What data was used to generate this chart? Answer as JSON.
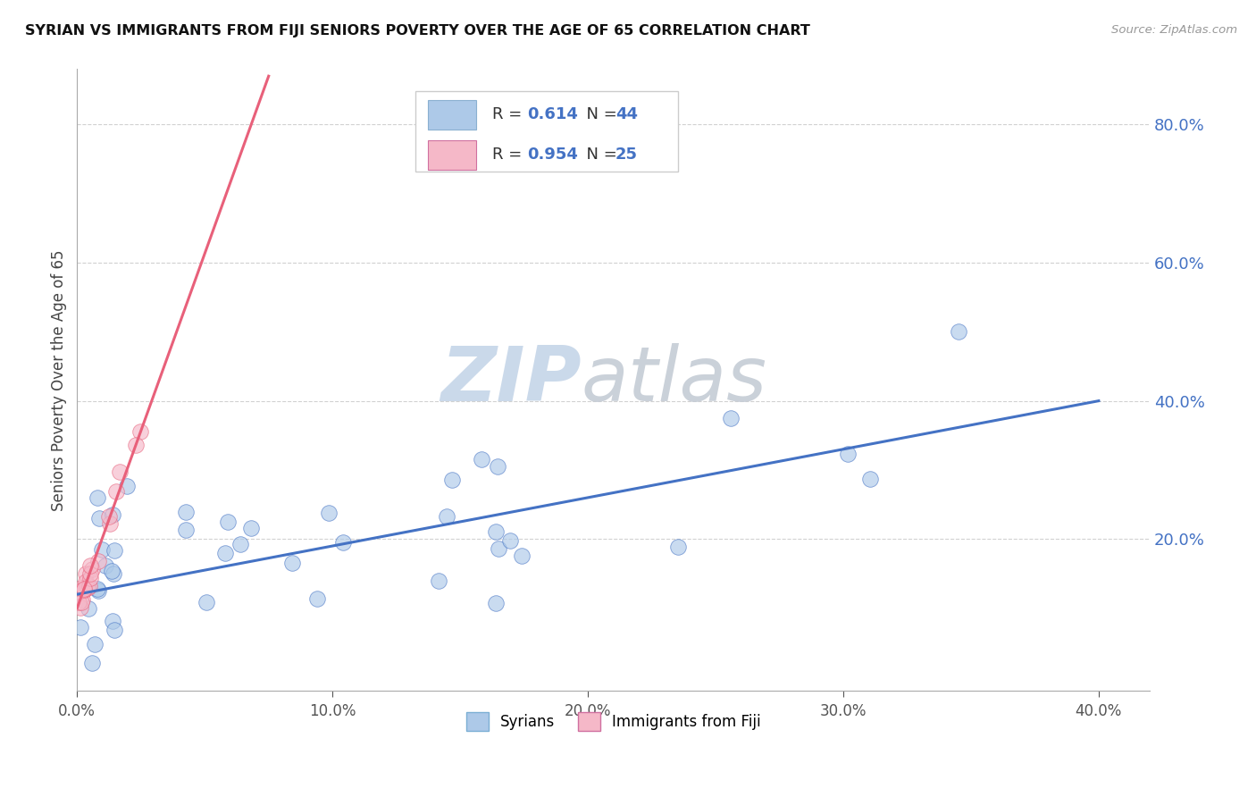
{
  "title": "SYRIAN VS IMMIGRANTS FROM FIJI SENIORS POVERTY OVER THE AGE OF 65 CORRELATION CHART",
  "source": "Source: ZipAtlas.com",
  "ylabel": "Seniors Poverty Over the Age of 65",
  "xlim": [
    0.0,
    0.42
  ],
  "ylim": [
    -0.02,
    0.88
  ],
  "xtick_values": [
    0.0,
    0.1,
    0.2,
    0.3,
    0.4
  ],
  "ytick_values": [
    0.2,
    0.4,
    0.6,
    0.8
  ],
  "syrian_color": "#adc9e8",
  "fiji_color": "#f5b8c8",
  "syrian_R": "0.614",
  "syrian_N": "44",
  "fiji_R": "0.954",
  "fiji_N": "25",
  "syrian_line_color": "#4472c4",
  "fiji_line_color": "#e8607a",
  "ytick_color": "#4472c4",
  "xtick_color": "#555555",
  "legend_label_syrians": "Syrians",
  "legend_label_fiji": "Immigrants from Fiji",
  "syrian_line_x0": 0.0,
  "syrian_line_y0": 0.12,
  "syrian_line_x1": 0.4,
  "syrian_line_y1": 0.4,
  "fiji_line_x0": 0.0,
  "fiji_line_y0": 0.1,
  "fiji_line_x1": 0.075,
  "fiji_line_y1": 0.87,
  "watermark_zip_color": "#c5d5e8",
  "watermark_atlas_color": "#c5ccd5"
}
